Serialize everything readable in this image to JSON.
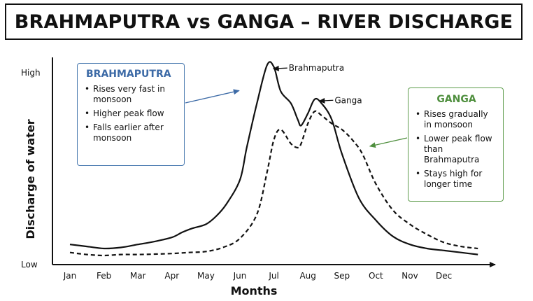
{
  "header": {
    "title": "BRAHMAPUTRA vs GANGA – RIVER DISCHARGE"
  },
  "chart_data": {
    "type": "line",
    "title": "BRAHMAPUTRA vs GANGA – RIVER DISCHARGE",
    "xlabel": "Months",
    "ylabel": "Discharge of water",
    "y_tick_labels": [
      "High",
      "Low"
    ],
    "categories": [
      "Jan",
      "Feb",
      "Mar",
      "Apr",
      "May",
      "Jun",
      "Jul",
      "Aug",
      "Sep",
      "Oct",
      "Nov",
      "Dec"
    ],
    "ylim": [
      0,
      100
    ],
    "grid": false,
    "series": [
      {
        "name": "Brahmaputra",
        "style": "solid",
        "color": "#111111",
        "x": [
          0,
          0.5,
          1,
          1.5,
          2,
          2.5,
          3,
          3.3,
          3.6,
          4,
          4.3,
          4.6,
          5,
          5.2,
          5.5,
          5.8,
          6,
          6.2,
          6.5,
          6.7,
          6.8,
          7,
          7.2,
          7.4,
          7.7,
          8,
          8.5,
          9,
          9.5,
          10,
          10.5,
          11,
          11.5,
          12
        ],
        "values": [
          10,
          9,
          8,
          8.5,
          10,
          11.5,
          13.5,
          16,
          18,
          20,
          24,
          30,
          42,
          58,
          80,
          99,
          98,
          86,
          80,
          72,
          69,
          75,
          82,
          80,
          72,
          55,
          33,
          22,
          14,
          10,
          8,
          7,
          6,
          5
        ]
      },
      {
        "name": "Ganga",
        "style": "dashed",
        "color": "#111111",
        "x": [
          0,
          0.5,
          1,
          1.5,
          2,
          2.5,
          3,
          3.5,
          4,
          4.5,
          5,
          5.5,
          5.8,
          6,
          6.2,
          6.5,
          6.7,
          6.8,
          7,
          7.2,
          7.4,
          7.7,
          8,
          8.3,
          8.6,
          9,
          9.5,
          10,
          10.5,
          11,
          11.5,
          12
        ],
        "values": [
          6,
          5,
          4.5,
          5,
          5,
          5.2,
          5.5,
          6,
          6.5,
          8.5,
          13,
          25,
          46,
          62,
          67,
          60,
          58,
          60,
          70,
          76,
          74,
          70,
          67,
          62,
          55,
          40,
          27,
          20,
          15,
          11,
          9,
          8
        ]
      }
    ],
    "annotations": [
      {
        "text": "Brahmaputra",
        "target_series": 0,
        "target_x": 5.9,
        "target_y": 97.5,
        "side": "right"
      },
      {
        "text": "Ganga",
        "target_series": 0,
        "target_x": 7.25,
        "target_y": 81.5,
        "side": "right"
      }
    ],
    "callouts": [
      {
        "title": "BRAHMAPUTRA",
        "color": "#3c6aa6",
        "points": [
          "Rises very fast in monsoon",
          "Higher peak flow",
          "Falls earlier after monsoon"
        ],
        "arrow_to": {
          "x": 5.1,
          "y": 87
        }
      },
      {
        "title": "GANGA",
        "color": "#4f8f3e",
        "points": [
          "Rises gradually in monsoon",
          "Lower peak flow than Brahmaputra",
          "Stays high for longer time"
        ],
        "arrow_to": {
          "x": 8.7,
          "y": 58
        }
      }
    ]
  }
}
